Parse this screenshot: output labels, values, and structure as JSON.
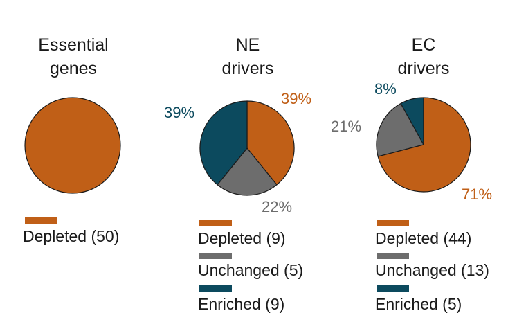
{
  "colors": {
    "depleted": "#c05f17",
    "unchanged": "#6d6d6d",
    "enriched": "#0c4a5e"
  },
  "chart_data": [
    {
      "type": "pie",
      "title_lines": [
        "Essential",
        "genes"
      ],
      "categories": [
        "Depleted"
      ],
      "values": [
        50
      ],
      "percent_labels": [
        ""
      ],
      "legend": [
        "Depleted (50)"
      ]
    },
    {
      "type": "pie",
      "title_lines": [
        "NE",
        "drivers"
      ],
      "categories": [
        "Depleted",
        "Unchanged",
        "Enriched"
      ],
      "values": [
        9,
        5,
        9
      ],
      "percent_labels": [
        "39%",
        "22%",
        "39%"
      ],
      "legend": [
        "Depleted (9)",
        "Unchanged (5)",
        "Enriched (9)"
      ]
    },
    {
      "type": "pie",
      "title_lines": [
        "EC",
        "drivers"
      ],
      "categories": [
        "Depleted",
        "Unchanged",
        "Enriched"
      ],
      "values": [
        44,
        13,
        5
      ],
      "percent_labels": [
        "71%",
        "21%",
        "8%"
      ],
      "legend": [
        "Depleted (44)",
        "Unchanged (13)",
        "Enriched (5)"
      ]
    }
  ]
}
